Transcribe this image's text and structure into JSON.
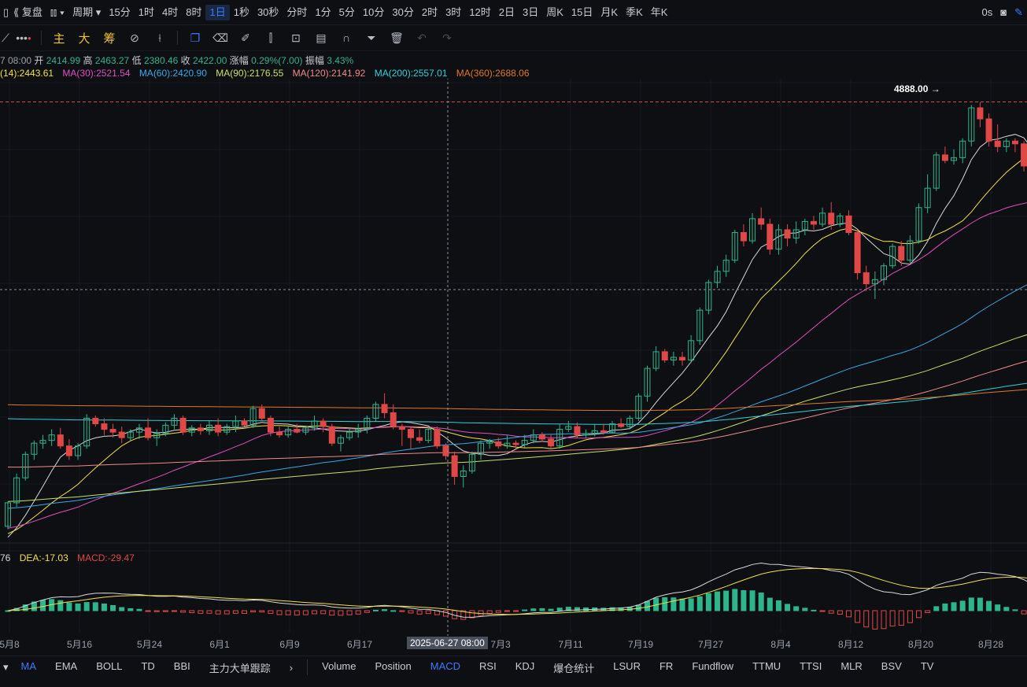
{
  "topbar": {
    "replay_label": "复盘",
    "period_label": "周期",
    "timeframes": [
      "15分",
      "1时",
      "4时",
      "8时",
      "1日",
      "1秒",
      "30秒",
      "分时",
      "1分",
      "5分",
      "10分",
      "30分",
      "2时",
      "3时",
      "12时",
      "2日",
      "3日",
      "周K",
      "15日",
      "月K",
      "季K",
      "年K"
    ],
    "active_timeframe": "1日",
    "right_label": "0s"
  },
  "toolbar": {
    "text_tools": [
      "主",
      "大",
      "筹"
    ]
  },
  "ohlc": {
    "date": "7 08:00",
    "open_label": "开",
    "open": "2414.99",
    "high_label": "高",
    "high": "2463.27",
    "low_label": "低",
    "low": "2380.46",
    "close_label": "收",
    "close": "2422.00",
    "change_label": "涨幅",
    "change": "0.29%(7.00)",
    "amp_label": "振幅",
    "amp": "3.43%"
  },
  "ma_legend": [
    {
      "label": "(14):2443.61",
      "color": "#f0e04a"
    },
    {
      "label": "MA(30):2521.54",
      "color": "#e04fbf"
    },
    {
      "label": "MA(60):2420.90",
      "color": "#3aa8e6"
    },
    {
      "label": "MA(90):2176.55",
      "color": "#c8e06a"
    },
    {
      "label": "MA(120):2141.92",
      "color": "#f08a8a"
    },
    {
      "label": "MA(200):2557.01",
      "color": "#32d0d8"
    },
    {
      "label": "MA(360):2688.06",
      "color": "#e0782a"
    }
  ],
  "max_price_label": "4888.00",
  "macd_legend": [
    {
      "label": "76",
      "color": "#d8d8d8"
    },
    {
      "label": "DEA:-17.03",
      "color": "#f0e04a"
    },
    {
      "label": "MACD:-29.47",
      "color": "#e04848"
    }
  ],
  "x_axis": [
    {
      "label": "5月8",
      "x": 12
    },
    {
      "label": "5月16",
      "x": 101
    },
    {
      "label": "5月24",
      "x": 190
    },
    {
      "label": "6月1",
      "x": 279
    },
    {
      "label": "6月9",
      "x": 368
    },
    {
      "label": "6月17",
      "x": 457
    },
    {
      "label": "7月3",
      "x": 636
    },
    {
      "label": "7月11",
      "x": 725
    },
    {
      "label": "7月19",
      "x": 814
    },
    {
      "label": "7月27",
      "x": 903
    },
    {
      "label": "8月4",
      "x": 992
    },
    {
      "label": "8月12",
      "x": 1081
    },
    {
      "label": "8月20",
      "x": 1170
    },
    {
      "label": "8月28",
      "x": 1259
    }
  ],
  "crosshair_date": "2025-06-27 08:00",
  "bottom_left_indicators": [
    "MA",
    "EMA",
    "BOLL",
    "TD",
    "BBI",
    "主力大单跟踪"
  ],
  "bottom_right_indicators": [
    "Volume",
    "Position",
    "MACD",
    "RSI",
    "KDJ",
    "爆仓统计",
    "LSUR",
    "FR",
    "Fundflow",
    "TTMU",
    "TTSI",
    "MLR",
    "BSV",
    "TV"
  ],
  "active_main": "MA",
  "active_sub": "MACD",
  "colors": {
    "up": "#2fb58a",
    "down": "#e04848",
    "accent": "#3b7bff"
  },
  "chart_data": {
    "type": "candlestick",
    "start_date": "2025-05-07",
    "ohlc": [
      [
        1820,
        2000,
        1800,
        1990
      ],
      [
        1990,
        2200,
        1960,
        2170
      ],
      [
        2170,
        2360,
        2150,
        2340
      ],
      [
        2340,
        2440,
        2300,
        2420
      ],
      [
        2420,
        2480,
        2380,
        2440
      ],
      [
        2440,
        2520,
        2400,
        2480
      ],
      [
        2480,
        2530,
        2380,
        2400
      ],
      [
        2400,
        2450,
        2300,
        2330
      ],
      [
        2330,
        2420,
        2300,
        2400
      ],
      [
        2400,
        2630,
        2380,
        2600
      ],
      [
        2600,
        2620,
        2540,
        2560
      ],
      [
        2560,
        2600,
        2480,
        2520
      ],
      [
        2520,
        2560,
        2460,
        2500
      ],
      [
        2500,
        2540,
        2420,
        2460
      ],
      [
        2460,
        2520,
        2440,
        2500
      ],
      [
        2500,
        2560,
        2450,
        2530
      ],
      [
        2530,
        2600,
        2440,
        2460
      ],
      [
        2460,
        2520,
        2400,
        2490
      ],
      [
        2490,
        2570,
        2470,
        2550
      ],
      [
        2550,
        2630,
        2520,
        2600
      ],
      [
        2600,
        2620,
        2480,
        2500
      ],
      [
        2500,
        2550,
        2470,
        2530
      ],
      [
        2530,
        2560,
        2480,
        2510
      ],
      [
        2510,
        2580,
        2480,
        2550
      ],
      [
        2550,
        2600,
        2470,
        2500
      ],
      [
        2500,
        2560,
        2480,
        2540
      ],
      [
        2540,
        2620,
        2500,
        2580
      ],
      [
        2580,
        2600,
        2540,
        2550
      ],
      [
        2550,
        2690,
        2530,
        2670
      ],
      [
        2670,
        2700,
        2580,
        2600
      ],
      [
        2600,
        2620,
        2470,
        2500
      ],
      [
        2500,
        2540,
        2460,
        2480
      ],
      [
        2480,
        2540,
        2460,
        2520
      ],
      [
        2520,
        2560,
        2490,
        2500
      ],
      [
        2500,
        2540,
        2480,
        2530
      ],
      [
        2530,
        2620,
        2510,
        2580
      ],
      [
        2580,
        2600,
        2500,
        2540
      ],
      [
        2540,
        2560,
        2400,
        2420
      ],
      [
        2420,
        2480,
        2360,
        2460
      ],
      [
        2460,
        2530,
        2440,
        2500
      ],
      [
        2500,
        2560,
        2460,
        2520
      ],
      [
        2520,
        2620,
        2490,
        2600
      ],
      [
        2600,
        2720,
        2580,
        2700
      ],
      [
        2700,
        2780,
        2600,
        2640
      ],
      [
        2640,
        2700,
        2520,
        2540
      ],
      [
        2540,
        2560,
        2400,
        2520
      ],
      [
        2520,
        2540,
        2380,
        2460
      ],
      [
        2460,
        2520,
        2420,
        2440
      ],
      [
        2440,
        2540,
        2420,
        2520
      ],
      [
        2520,
        2540,
        2380,
        2400
      ],
      [
        2400,
        2420,
        2300,
        2330
      ],
      [
        2330,
        2360,
        2120,
        2180
      ],
      [
        2180,
        2260,
        2100,
        2220
      ],
      [
        2220,
        2360,
        2200,
        2340
      ],
      [
        2340,
        2440,
        2300,
        2420
      ],
      [
        2420,
        2450,
        2380,
        2430
      ],
      [
        2430,
        2460,
        2380,
        2400
      ],
      [
        2400,
        2480,
        2380,
        2420
      ],
      [
        2420,
        2440,
        2380,
        2410
      ],
      [
        2410,
        2480,
        2390,
        2440
      ],
      [
        2440,
        2520,
        2420,
        2480
      ],
      [
        2480,
        2500,
        2430,
        2450
      ],
      [
        2450,
        2480,
        2380,
        2400
      ],
      [
        2400,
        2560,
        2380,
        2520
      ],
      [
        2520,
        2580,
        2500,
        2540
      ],
      [
        2540,
        2570,
        2460,
        2480
      ],
      [
        2480,
        2520,
        2460,
        2490
      ],
      [
        2490,
        2560,
        2470,
        2510
      ],
      [
        2510,
        2560,
        2480,
        2500
      ],
      [
        2500,
        2580,
        2490,
        2560
      ],
      [
        2560,
        2600,
        2530,
        2540
      ],
      [
        2540,
        2620,
        2520,
        2600
      ],
      [
        2600,
        2780,
        2580,
        2760
      ],
      [
        2760,
        2980,
        2720,
        2960
      ],
      [
        2960,
        3120,
        2940,
        3080
      ],
      [
        3080,
        3100,
        3000,
        3020
      ],
      [
        3020,
        3080,
        2980,
        3040
      ],
      [
        3040,
        3080,
        2980,
        3020
      ],
      [
        3020,
        3200,
        3000,
        3160
      ],
      [
        3160,
        3400,
        3130,
        3380
      ],
      [
        3380,
        3600,
        3350,
        3580
      ],
      [
        3580,
        3700,
        3540,
        3660
      ],
      [
        3660,
        3780,
        3620,
        3740
      ],
      [
        3740,
        3960,
        3720,
        3940
      ],
      [
        3940,
        4000,
        3840,
        3880
      ],
      [
        3880,
        4080,
        3860,
        4040
      ],
      [
        4040,
        4120,
        3960,
        4000
      ],
      [
        4000,
        4040,
        3780,
        3820
      ],
      [
        3820,
        4000,
        3780,
        3960
      ],
      [
        3960,
        4000,
        3840,
        3900
      ],
      [
        3900,
        4020,
        3860,
        3960
      ],
      [
        3960,
        4040,
        3920,
        4020
      ],
      [
        4020,
        4060,
        3960,
        4000
      ],
      [
        4000,
        4120,
        3980,
        4080
      ],
      [
        4080,
        4160,
        3960,
        4000
      ],
      [
        4000,
        4080,
        3980,
        4060
      ],
      [
        4060,
        4100,
        3920,
        3940
      ],
      [
        3940,
        3960,
        3600,
        3650
      ],
      [
        3650,
        3700,
        3520,
        3570
      ],
      [
        3570,
        3660,
        3460,
        3600
      ],
      [
        3600,
        3720,
        3560,
        3700
      ],
      [
        3700,
        3860,
        3680,
        3840
      ],
      [
        3840,
        3880,
        3700,
        3740
      ],
      [
        3740,
        3920,
        3720,
        3880
      ],
      [
        3880,
        4150,
        3860,
        4120
      ],
      [
        4120,
        4360,
        4080,
        4260
      ],
      [
        4260,
        4520,
        4240,
        4500
      ],
      [
        4500,
        4560,
        4440,
        4460
      ],
      [
        4460,
        4540,
        4430,
        4480
      ],
      [
        4480,
        4620,
        4440,
        4600
      ],
      [
        4600,
        4860,
        4560,
        4840
      ],
      [
        4840,
        4880,
        4700,
        4760
      ],
      [
        4760,
        4800,
        4560,
        4600
      ],
      [
        4600,
        4720,
        4520,
        4560
      ],
      [
        4560,
        4620,
        4520,
        4600
      ],
      [
        4600,
        4620,
        4520,
        4580
      ],
      [
        4580,
        4600,
        4380,
        4420
      ],
      [
        4420,
        4500,
        4200,
        4240
      ],
      [
        4240,
        4480,
        4220,
        4460
      ],
      [
        4460,
        4520,
        4360,
        4380
      ],
      [
        4380,
        4900,
        4360,
        4860
      ],
      [
        4860,
        4888,
        4740,
        4800
      ]
    ],
    "ma_series": [
      "MA(14)",
      "MA(30)",
      "MA(60)",
      "MA(90)",
      "MA(120)",
      "MA(200)",
      "MA(360)"
    ],
    "ylim": [
      1700,
      5050
    ]
  }
}
